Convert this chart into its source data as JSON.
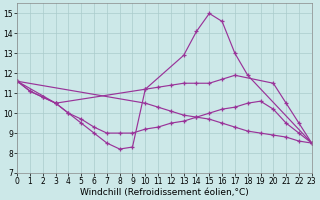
{
  "background_color": "#cce8e8",
  "grid_color": "#aacccc",
  "line_color": "#993399",
  "xlim": [
    0,
    23
  ],
  "ylim": [
    7,
    15.5
  ],
  "xlabel": "Windchill (Refroidissement éolien,°C)",
  "xlabel_fontsize": 6.5,
  "tick_fontsize": 5.5,
  "xticks": [
    0,
    1,
    2,
    3,
    4,
    5,
    6,
    7,
    8,
    9,
    10,
    11,
    12,
    13,
    14,
    15,
    16,
    17,
    18,
    19,
    20,
    21,
    22,
    23
  ],
  "yticks": [
    7,
    8,
    9,
    10,
    11,
    12,
    13,
    14,
    15
  ],
  "lines": [
    {
      "x": [
        0,
        3,
        4,
        5,
        6,
        7,
        8,
        9,
        10,
        13,
        14,
        15,
        16,
        17,
        18,
        23
      ],
      "y": [
        11.6,
        10.5,
        10.0,
        9.5,
        9.0,
        8.5,
        8.2,
        8.3,
        11.2,
        12.9,
        14.1,
        15.0,
        14.6,
        13.0,
        11.9,
        8.5
      ]
    },
    {
      "x": [
        0,
        1,
        2,
        3,
        4,
        5,
        6,
        7,
        8,
        9,
        10,
        11,
        12,
        13,
        14,
        15,
        16,
        17,
        18,
        19,
        20,
        21,
        22,
        23
      ],
      "y": [
        11.6,
        11.1,
        10.8,
        10.5,
        10.0,
        9.7,
        9.3,
        9.0,
        9.0,
        9.0,
        9.2,
        9.3,
        9.5,
        9.6,
        9.8,
        10.0,
        10.2,
        10.3,
        10.5,
        10.6,
        10.2,
        9.5,
        9.0,
        8.5
      ]
    },
    {
      "x": [
        0,
        1,
        2,
        3,
        10,
        11,
        12,
        13,
        14,
        15,
        16,
        17,
        20,
        21,
        22,
        23
      ],
      "y": [
        11.6,
        11.1,
        10.8,
        10.5,
        11.2,
        11.3,
        11.4,
        11.5,
        11.5,
        11.5,
        11.7,
        11.9,
        11.5,
        10.5,
        9.5,
        8.5
      ]
    },
    {
      "x": [
        0,
        10,
        11,
        12,
        13,
        14,
        15,
        16,
        17,
        18,
        19,
        20,
        21,
        22,
        23
      ],
      "y": [
        11.6,
        10.5,
        10.3,
        10.1,
        9.9,
        9.8,
        9.7,
        9.5,
        9.3,
        9.1,
        9.0,
        8.9,
        8.8,
        8.6,
        8.5
      ]
    }
  ]
}
